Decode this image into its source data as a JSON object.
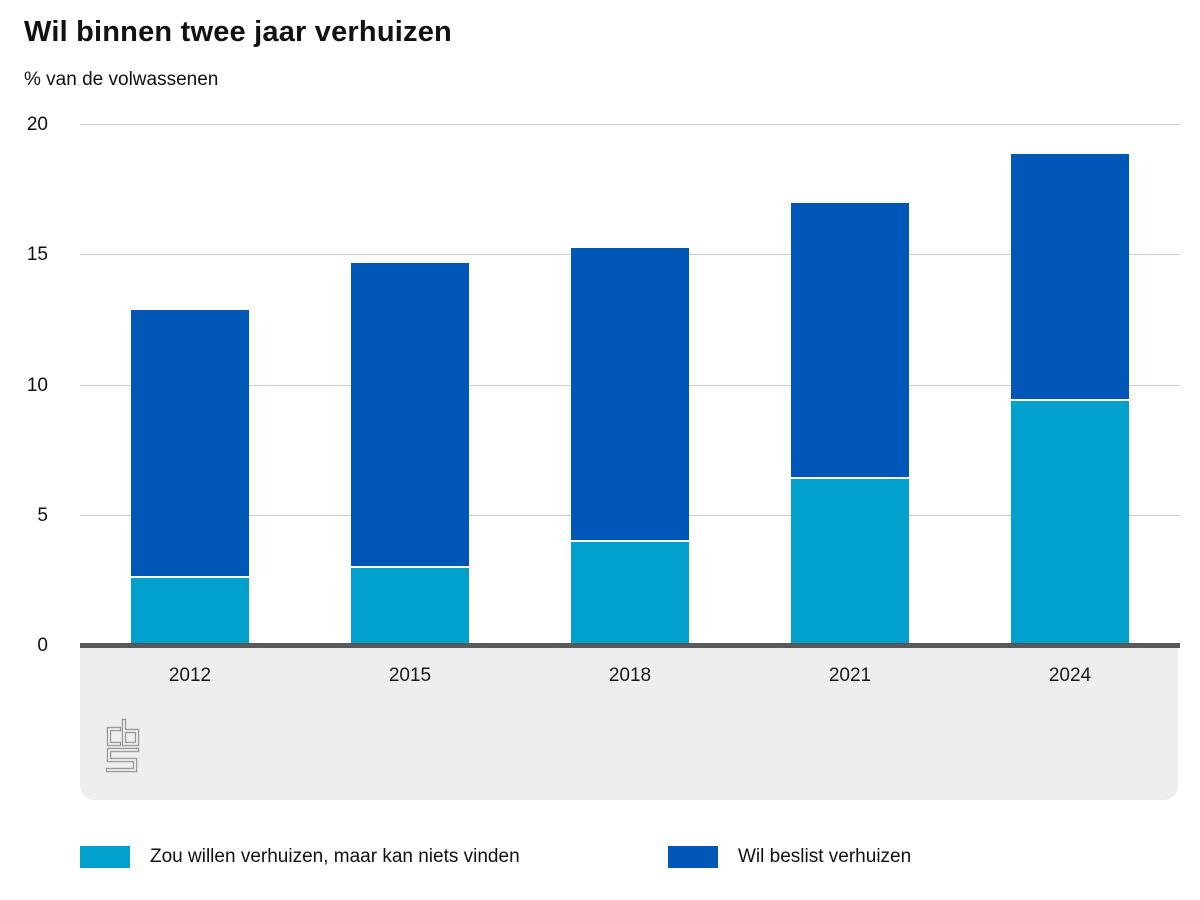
{
  "title": "Wil binnen twee jaar verhuizen",
  "subtitle": "% van de volwassenen",
  "colors": {
    "light_blue": "#00a1cd",
    "dark_blue": "#0057b8",
    "gridline": "#cccccc",
    "axis_line": "#58595b",
    "panel_bg": "#eeeeee",
    "segment_divider": "#ffffff",
    "logo_gray": "#9b9b9b"
  },
  "logo": {
    "text": "cbs"
  },
  "chart_data": {
    "type": "bar",
    "stacked": true,
    "title": "Wil binnen twee jaar verhuizen",
    "subtitle": "% van de volwassenen",
    "categories": [
      "2012",
      "2015",
      "2018",
      "2021",
      "2024"
    ],
    "series": [
      {
        "name": "Zou willen verhuizen, maar kan niets vinden",
        "color": "#00a1cd",
        "values": [
          2.6,
          3.0,
          4.0,
          6.4,
          9.4
        ]
      },
      {
        "name": "Wil beslist verhuizen",
        "color": "#0057b8",
        "values": [
          10.3,
          11.7,
          11.3,
          10.6,
          9.5
        ]
      }
    ],
    "ylim": [
      0,
      20
    ],
    "yticks": [
      0,
      5,
      10,
      15,
      20
    ],
    "grid": "horizontal",
    "legend_position": "bottom"
  }
}
